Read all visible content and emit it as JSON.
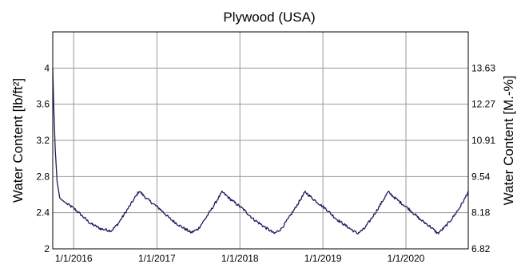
{
  "chart_data": {
    "type": "line",
    "title": "Plywood (USA)",
    "ylabel": "Water Content [lb/ft²]",
    "y2label": "Water Content [M.-%]",
    "ylim": [
      2.0,
      4.4
    ],
    "yticks": [
      "2",
      "2.4",
      "2.8",
      "3.2",
      "3.6",
      "4"
    ],
    "y2ticks": [
      "6.82",
      "8.18",
      "9.54",
      "10.91",
      "12.27",
      "13.63"
    ],
    "xlim": [
      "2015-10-01",
      "2020-10-01"
    ],
    "xticks": [
      "1/1/2016",
      "1/1/2017",
      "1/1/2018",
      "1/1/2019",
      "1/1/2020"
    ],
    "grid": true,
    "series": [
      {
        "color": "#1c1c5e",
        "points": [
          [
            "2015-10-01",
            4.0
          ],
          [
            "2015-10-05",
            3.6
          ],
          [
            "2015-10-12",
            3.1
          ],
          [
            "2015-10-20",
            2.75
          ],
          [
            "2015-11-01",
            2.56
          ],
          [
            "2015-12-01",
            2.5
          ],
          [
            "2016-01-01",
            2.45
          ],
          [
            "2016-02-01",
            2.38
          ],
          [
            "2016-03-15",
            2.28
          ],
          [
            "2016-05-01",
            2.22
          ],
          [
            "2016-06-15",
            2.2
          ],
          [
            "2016-07-15",
            2.28
          ],
          [
            "2016-08-15",
            2.4
          ],
          [
            "2016-09-15",
            2.52
          ],
          [
            "2016-10-15",
            2.64
          ],
          [
            "2016-11-15",
            2.56
          ],
          [
            "2016-12-15",
            2.5
          ],
          [
            "2017-01-15",
            2.44
          ],
          [
            "2017-03-01",
            2.33
          ],
          [
            "2017-04-15",
            2.25
          ],
          [
            "2017-06-01",
            2.18
          ],
          [
            "2017-07-01",
            2.22
          ],
          [
            "2017-08-01",
            2.33
          ],
          [
            "2017-09-01",
            2.45
          ],
          [
            "2017-10-15",
            2.63
          ],
          [
            "2017-11-15",
            2.56
          ],
          [
            "2017-12-15",
            2.5
          ],
          [
            "2018-01-15",
            2.44
          ],
          [
            "2018-03-01",
            2.33
          ],
          [
            "2018-04-15",
            2.25
          ],
          [
            "2018-06-01",
            2.17
          ],
          [
            "2018-07-01",
            2.22
          ],
          [
            "2018-08-01",
            2.33
          ],
          [
            "2018-09-01",
            2.45
          ],
          [
            "2018-10-15",
            2.63
          ],
          [
            "2018-11-15",
            2.56
          ],
          [
            "2018-12-15",
            2.5
          ],
          [
            "2019-01-15",
            2.44
          ],
          [
            "2019-03-01",
            2.33
          ],
          [
            "2019-04-15",
            2.25
          ],
          [
            "2019-06-01",
            2.17
          ],
          [
            "2019-07-01",
            2.22
          ],
          [
            "2019-08-01",
            2.33
          ],
          [
            "2019-09-01",
            2.45
          ],
          [
            "2019-10-15",
            2.63
          ],
          [
            "2019-11-15",
            2.56
          ],
          [
            "2019-12-15",
            2.5
          ],
          [
            "2020-01-15",
            2.44
          ],
          [
            "2020-03-01",
            2.33
          ],
          [
            "2020-04-15",
            2.25
          ],
          [
            "2020-05-20",
            2.17
          ],
          [
            "2020-06-20",
            2.24
          ],
          [
            "2020-07-20",
            2.33
          ],
          [
            "2020-08-20",
            2.44
          ],
          [
            "2020-09-15",
            2.55
          ],
          [
            "2020-10-01",
            2.64
          ]
        ]
      }
    ]
  }
}
